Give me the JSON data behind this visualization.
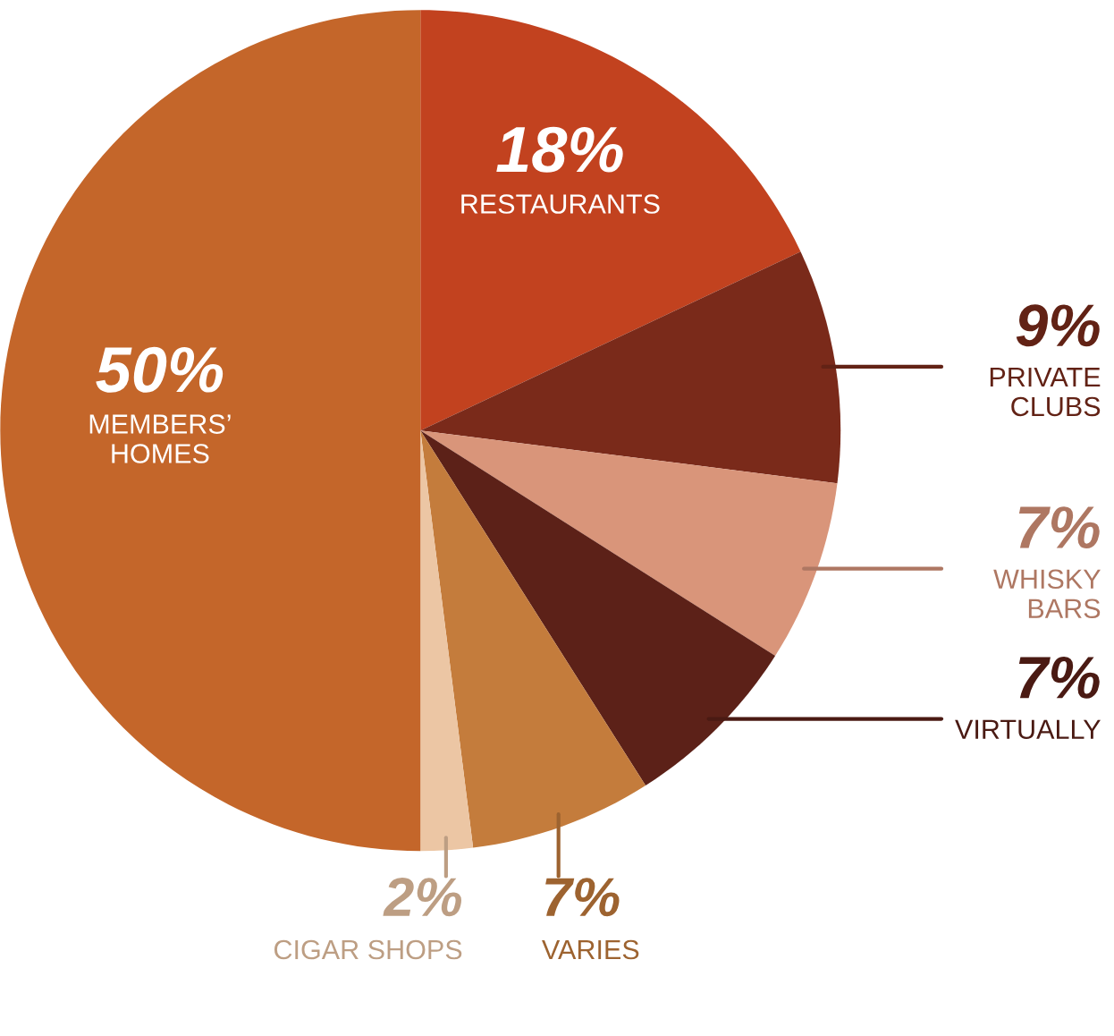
{
  "chart_data": {
    "type": "pie",
    "categories": [
      "RESTAURANTS",
      "PRIVATE\nCLUBS",
      "WHISKY\nBARS",
      "VIRTUALLY",
      "VARIES",
      "CIGAR SHOPS",
      "MEMBERS’\nHOMES"
    ],
    "values": [
      18,
      9,
      7,
      7,
      7,
      2,
      50
    ],
    "value_labels": [
      "18%",
      "9%",
      "7%",
      "7%",
      "7%",
      "2%",
      "50%"
    ],
    "colors": [
      "#c2421f",
      "#7a2a1a",
      "#d9957a",
      "#5c2118",
      "#c47c3c",
      "#ecc6a4",
      "#c4662a"
    ]
  }
}
